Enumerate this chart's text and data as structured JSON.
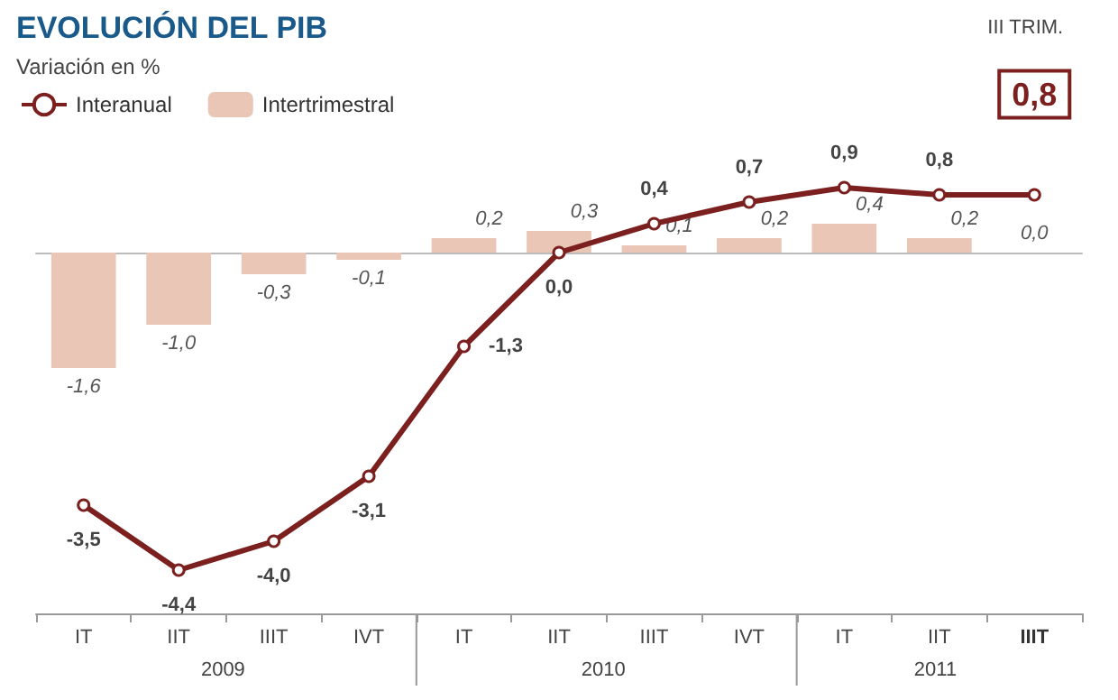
{
  "chart_data": {
    "type": "bar",
    "title": "EVOLUCIÓN DEL PIB",
    "subtitle": "Variación en %",
    "categories": [
      "IT",
      "IIT",
      "IIIT",
      "IVT",
      "IT",
      "IIT",
      "IIIT",
      "IVT",
      "IT",
      "IIT",
      "IIIT"
    ],
    "series": [
      {
        "name": "Interanual",
        "type": "line",
        "color": "#7b1f1f",
        "values": [
          -3.5,
          -4.4,
          -4.0,
          -3.1,
          -1.3,
          0.0,
          0.4,
          0.7,
          0.9,
          0.8,
          0.8
        ],
        "value_labels": [
          "-3,5",
          "-4,4",
          "-4,0",
          "-3,1",
          "-1,3",
          "0,0",
          "0,4",
          "0,7",
          "0,9",
          "0,8",
          "0,8"
        ]
      },
      {
        "name": "Intertrimestral",
        "color": "#e9c6b6",
        "values": [
          -1.6,
          -1.0,
          -0.3,
          -0.1,
          0.2,
          0.3,
          0.1,
          0.2,
          0.4,
          0.2,
          0.0
        ],
        "value_labels": [
          "-1,6",
          "-1,0",
          "-0,3",
          "-0,1",
          "0,2",
          "0,3",
          "0,1",
          "0,2",
          "0,4",
          "0,2",
          "0,0"
        ]
      }
    ],
    "annotations": [
      "2009",
      "2010",
      "2011",
      "III TRIM."
    ],
    "marker": "circle",
    "legend": "top left",
    "grid": false
  }
}
